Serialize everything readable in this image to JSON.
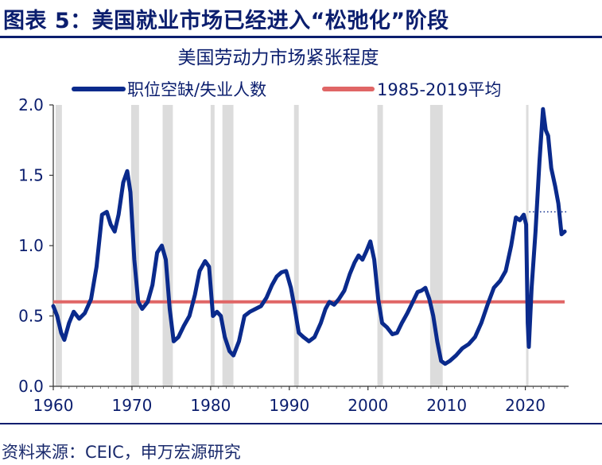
{
  "header": {
    "figure_title": "图表 5：美国就业市场已经进入“松弛化”阶段"
  },
  "footer": {
    "source": "资料来源：CEIC，申万宏源研究"
  },
  "colors": {
    "series_line": "#0a2a8c",
    "average_line": "#e06666",
    "recession_band": "#dcdcdc",
    "text": "#0b1e6e"
  },
  "chart_data": {
    "type": "line",
    "title": "美国劳动力市场紧张程度",
    "xlabel": "",
    "ylabel": "",
    "xlim": [
      1960,
      2025.5
    ],
    "ylim": [
      0.0,
      2.0
    ],
    "x_ticks": [
      "1960",
      "1970",
      "1980",
      "1990",
      "2000",
      "2010",
      "2020"
    ],
    "y_ticks": [
      "0.0",
      "0.5",
      "1.0",
      "1.5",
      "2.0"
    ],
    "grid": false,
    "legend": "top",
    "series": [
      {
        "name": "职位空缺/失业人数",
        "color": "#0a2a8c",
        "points": [
          [
            1960.0,
            0.57
          ],
          [
            1960.5,
            0.5
          ],
          [
            1961.0,
            0.38
          ],
          [
            1961.4,
            0.33
          ],
          [
            1962.0,
            0.45
          ],
          [
            1962.6,
            0.53
          ],
          [
            1963.3,
            0.48
          ],
          [
            1964.0,
            0.52
          ],
          [
            1964.8,
            0.62
          ],
          [
            1965.5,
            0.85
          ],
          [
            1966.2,
            1.22
          ],
          [
            1966.8,
            1.24
          ],
          [
            1967.3,
            1.15
          ],
          [
            1967.8,
            1.1
          ],
          [
            1968.3,
            1.22
          ],
          [
            1968.9,
            1.45
          ],
          [
            1969.4,
            1.53
          ],
          [
            1969.8,
            1.38
          ],
          [
            1970.3,
            0.9
          ],
          [
            1970.8,
            0.6
          ],
          [
            1971.3,
            0.55
          ],
          [
            1972.0,
            0.6
          ],
          [
            1972.6,
            0.72
          ],
          [
            1973.2,
            0.95
          ],
          [
            1973.8,
            1.0
          ],
          [
            1974.3,
            0.9
          ],
          [
            1974.8,
            0.55
          ],
          [
            1975.3,
            0.32
          ],
          [
            1975.9,
            0.35
          ],
          [
            1976.6,
            0.43
          ],
          [
            1977.3,
            0.5
          ],
          [
            1978.0,
            0.65
          ],
          [
            1978.6,
            0.82
          ],
          [
            1979.3,
            0.89
          ],
          [
            1979.8,
            0.85
          ],
          [
            1980.3,
            0.5
          ],
          [
            1980.8,
            0.53
          ],
          [
            1981.3,
            0.5
          ],
          [
            1981.8,
            0.35
          ],
          [
            1982.4,
            0.25
          ],
          [
            1982.9,
            0.22
          ],
          [
            1983.6,
            0.32
          ],
          [
            1984.3,
            0.5
          ],
          [
            1985.0,
            0.53
          ],
          [
            1985.7,
            0.55
          ],
          [
            1986.4,
            0.57
          ],
          [
            1987.1,
            0.63
          ],
          [
            1987.8,
            0.72
          ],
          [
            1988.4,
            0.78
          ],
          [
            1989.0,
            0.81
          ],
          [
            1989.6,
            0.82
          ],
          [
            1990.2,
            0.7
          ],
          [
            1990.7,
            0.55
          ],
          [
            1991.2,
            0.38
          ],
          [
            1991.8,
            0.35
          ],
          [
            1992.5,
            0.32
          ],
          [
            1993.2,
            0.35
          ],
          [
            1994.0,
            0.45
          ],
          [
            1994.6,
            0.55
          ],
          [
            1995.1,
            0.6
          ],
          [
            1995.7,
            0.58
          ],
          [
            1996.3,
            0.62
          ],
          [
            1997.0,
            0.68
          ],
          [
            1997.7,
            0.8
          ],
          [
            1998.3,
            0.88
          ],
          [
            1998.8,
            0.93
          ],
          [
            1999.3,
            0.9
          ],
          [
            1999.8,
            0.96
          ],
          [
            2000.3,
            1.03
          ],
          [
            2000.8,
            0.9
          ],
          [
            2001.3,
            0.62
          ],
          [
            2001.8,
            0.45
          ],
          [
            2002.4,
            0.42
          ],
          [
            2003.1,
            0.37
          ],
          [
            2003.7,
            0.38
          ],
          [
            2004.3,
            0.45
          ],
          [
            2005.0,
            0.52
          ],
          [
            2005.7,
            0.6
          ],
          [
            2006.3,
            0.67
          ],
          [
            2006.8,
            0.68
          ],
          [
            2007.3,
            0.7
          ],
          [
            2007.8,
            0.62
          ],
          [
            2008.3,
            0.5
          ],
          [
            2008.8,
            0.32
          ],
          [
            2009.3,
            0.18
          ],
          [
            2009.8,
            0.16
          ],
          [
            2010.4,
            0.18
          ],
          [
            2011.2,
            0.22
          ],
          [
            2012.0,
            0.27
          ],
          [
            2012.8,
            0.3
          ],
          [
            2013.6,
            0.35
          ],
          [
            2014.4,
            0.45
          ],
          [
            2015.2,
            0.58
          ],
          [
            2016.0,
            0.7
          ],
          [
            2016.8,
            0.75
          ],
          [
            2017.5,
            0.82
          ],
          [
            2018.2,
            1.0
          ],
          [
            2018.8,
            1.2
          ],
          [
            2019.3,
            1.18
          ],
          [
            2019.8,
            1.22
          ],
          [
            2020.1,
            1.15
          ],
          [
            2020.3,
            0.45
          ],
          [
            2020.45,
            0.28
          ],
          [
            2020.8,
            0.7
          ],
          [
            2021.3,
            1.1
          ],
          [
            2021.8,
            1.6
          ],
          [
            2022.25,
            1.97
          ],
          [
            2022.6,
            1.82
          ],
          [
            2022.9,
            1.78
          ],
          [
            2023.3,
            1.55
          ],
          [
            2023.8,
            1.42
          ],
          [
            2024.2,
            1.3
          ],
          [
            2024.6,
            1.08
          ],
          [
            2025.0,
            1.1
          ]
        ]
      },
      {
        "name": "1985-2019平均",
        "color": "#e06666",
        "points": [
          [
            1960.0,
            0.6
          ],
          [
            2025.0,
            0.6
          ]
        ]
      }
    ],
    "annotations": [
      {
        "type": "dotted-reference",
        "x_range": [
          2020.5,
          2025.5
        ],
        "y": 1.24,
        "color": "#0a2a8c"
      }
    ],
    "recession_periods": [
      [
        1960.3,
        1961.1
      ],
      [
        1969.9,
        1970.9
      ],
      [
        1973.9,
        1975.2
      ],
      [
        1980.0,
        1980.5
      ],
      [
        1981.5,
        1982.9
      ],
      [
        1990.6,
        1991.2
      ],
      [
        2001.2,
        2001.9
      ],
      [
        2007.9,
        2009.5
      ],
      [
        2020.1,
        2020.4
      ]
    ]
  }
}
